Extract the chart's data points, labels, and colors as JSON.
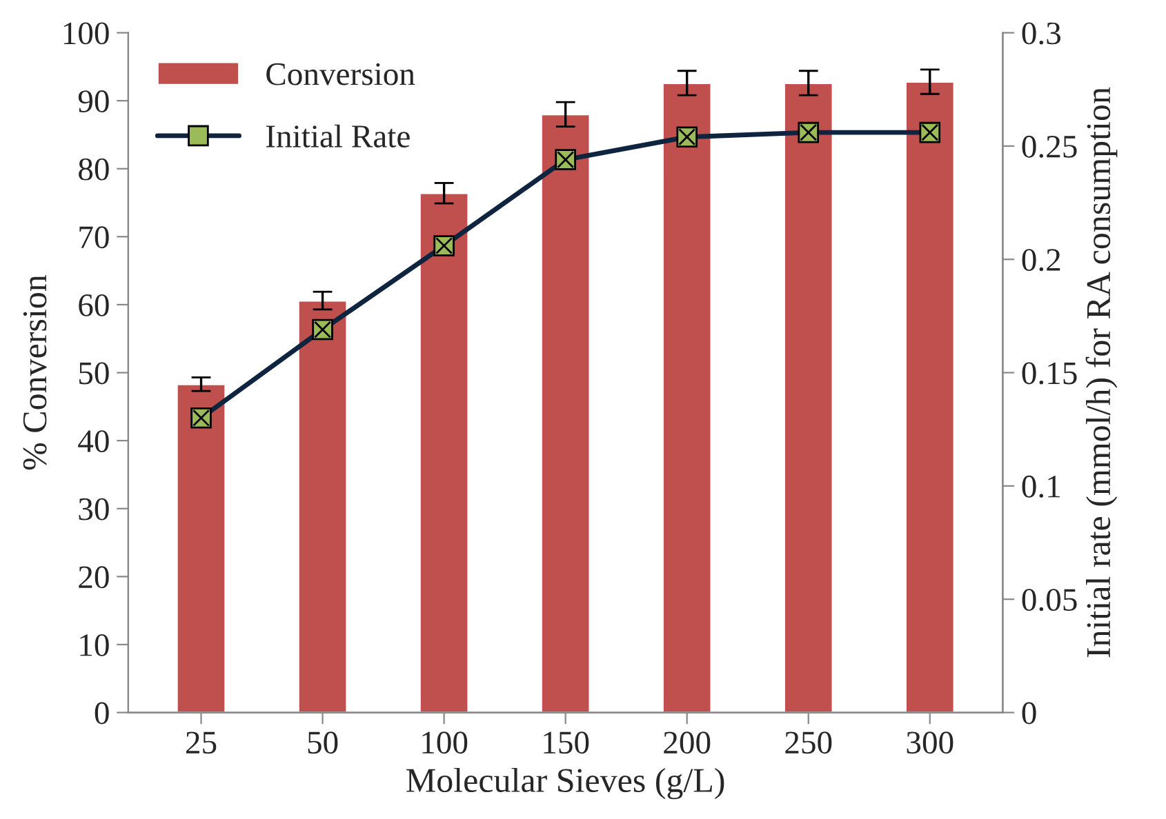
{
  "chart_data": {
    "type": "bar",
    "xlabel": "Molecular Sieves (g/L)",
    "ylabel": "% Conversion",
    "y2label": "Initial rate (mmol/h) for RA consumption",
    "categories": [
      "25",
      "50",
      "100",
      "150",
      "200",
      "250",
      "300"
    ],
    "series": [
      {
        "name": "Conversion",
        "color": "#c0504d",
        "values": [
          48.3,
          60.6,
          76.4,
          88.0,
          92.6,
          92.6,
          92.8
        ],
        "errors": [
          1,
          1.3,
          1.5,
          1.8,
          1.8,
          1.8,
          1.8
        ]
      },
      {
        "name": "Initial Rate",
        "type": "line",
        "axis": "y2",
        "color": "#0f243e",
        "marker": "square",
        "values": [
          0.13,
          0.169,
          0.206,
          0.244,
          0.254,
          0.256,
          0.256
        ]
      }
    ],
    "ylim": [
      0,
      100
    ],
    "yticks": [
      0,
      10,
      20,
      30,
      40,
      50,
      60,
      70,
      80,
      90,
      100
    ],
    "y2lim": [
      0,
      0.3
    ],
    "y2ticks": [
      0,
      0.05,
      0.1,
      0.15,
      0.2,
      0.25,
      0.3
    ],
    "grid": false,
    "legend": "top left"
  }
}
